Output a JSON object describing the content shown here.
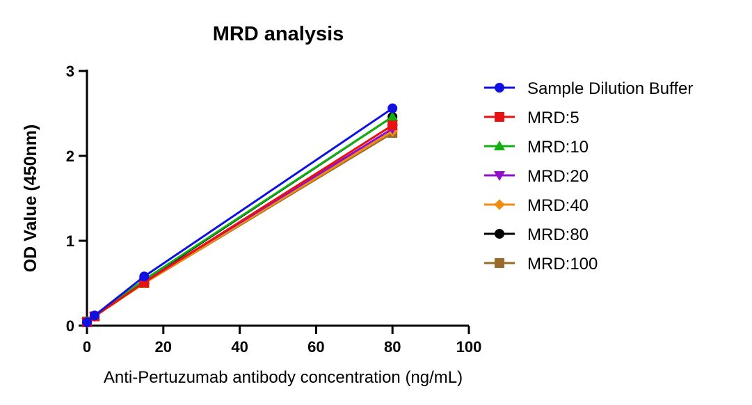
{
  "chart_data": {
    "type": "line",
    "title": "MRD analysis",
    "xlabel": "Anti-Pertuzumab antibody concentration (ng/mL)",
    "ylabel": "OD Value (450nm)",
    "xlim": [
      0,
      100
    ],
    "ylim": [
      0,
      3
    ],
    "xticks": [
      0,
      20,
      40,
      60,
      80,
      100
    ],
    "yticks": [
      0,
      1,
      2,
      3
    ],
    "grid": false,
    "legend_position": "right",
    "x": [
      0,
      2,
      15,
      80
    ],
    "series": [
      {
        "name": "Sample Dilution Buffer",
        "color": "#1010e0",
        "marker": "circle",
        "values": [
          0.04,
          0.12,
          0.58,
          2.56
        ]
      },
      {
        "name": "MRD:5",
        "color": "#e81010",
        "marker": "square",
        "values": [
          0.04,
          0.11,
          0.51,
          2.36
        ]
      },
      {
        "name": "MRD:10",
        "color": "#10b010",
        "marker": "triangle-up",
        "values": [
          0.04,
          0.11,
          0.54,
          2.46
        ]
      },
      {
        "name": "MRD:20",
        "color": "#9010c8",
        "marker": "triangle-down",
        "values": [
          0.04,
          0.11,
          0.52,
          2.32
        ]
      },
      {
        "name": "MRD:40",
        "color": "#f08c10",
        "marker": "diamond",
        "values": [
          0.04,
          0.11,
          0.5,
          2.29
        ]
      },
      {
        "name": "MRD:80",
        "color": "#000000",
        "marker": "circle",
        "values": [
          0.04,
          0.11,
          0.53,
          2.46
        ]
      },
      {
        "name": "MRD:100",
        "color": "#9a6a2a",
        "marker": "square",
        "values": [
          0.05,
          0.11,
          0.5,
          2.27
        ]
      }
    ]
  }
}
